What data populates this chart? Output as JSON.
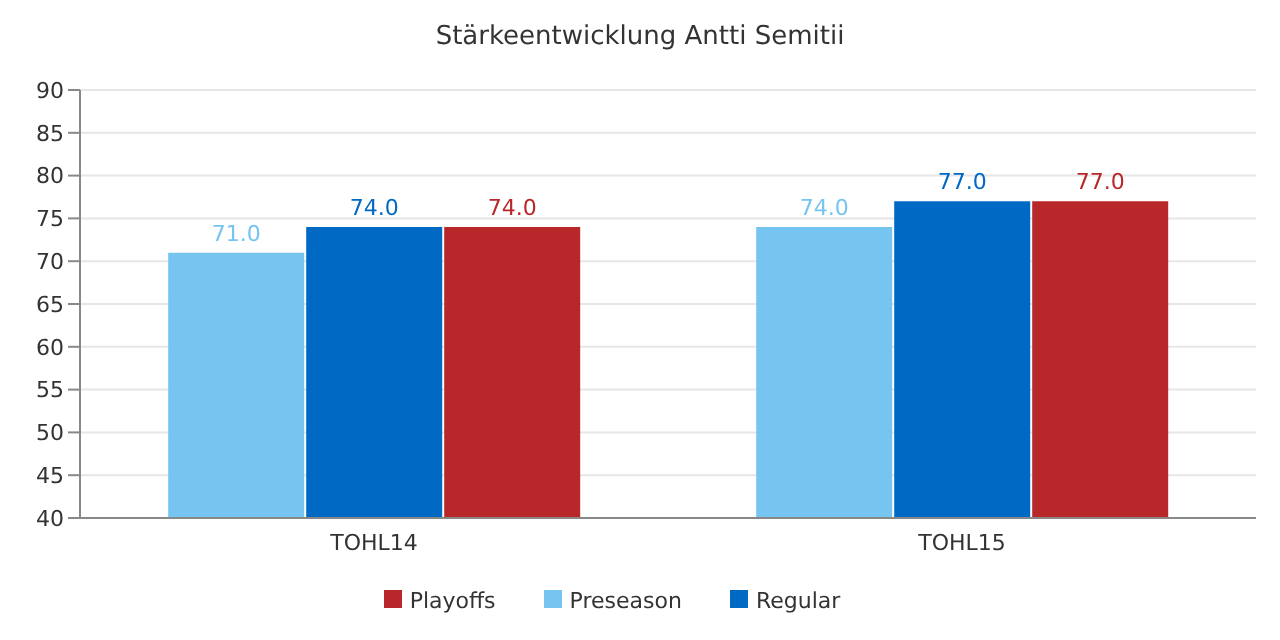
{
  "chart_data": {
    "type": "bar",
    "title": "Stärkeentwicklung Antti Semitii",
    "categories": [
      "TOHL14",
      "TOHL15"
    ],
    "series": [
      {
        "name": "Preseason",
        "color": "#76c4f0",
        "values": [
          71,
          74
        ],
        "value_labels": [
          "71.0",
          "74.0"
        ]
      },
      {
        "name": "Regular",
        "color": "#0069c4",
        "values": [
          74,
          77
        ],
        "value_labels": [
          "74.0",
          "77.0"
        ]
      },
      {
        "name": "Playoffs",
        "color": "#b8282a",
        "values": [
          74,
          77
        ],
        "value_labels": [
          "74.0",
          "77.0"
        ]
      }
    ],
    "ylim": [
      40,
      90
    ],
    "yticks": [
      40,
      45,
      50,
      55,
      60,
      65,
      70,
      75,
      80,
      85,
      90
    ],
    "grid": "y",
    "legend": "bottom"
  }
}
